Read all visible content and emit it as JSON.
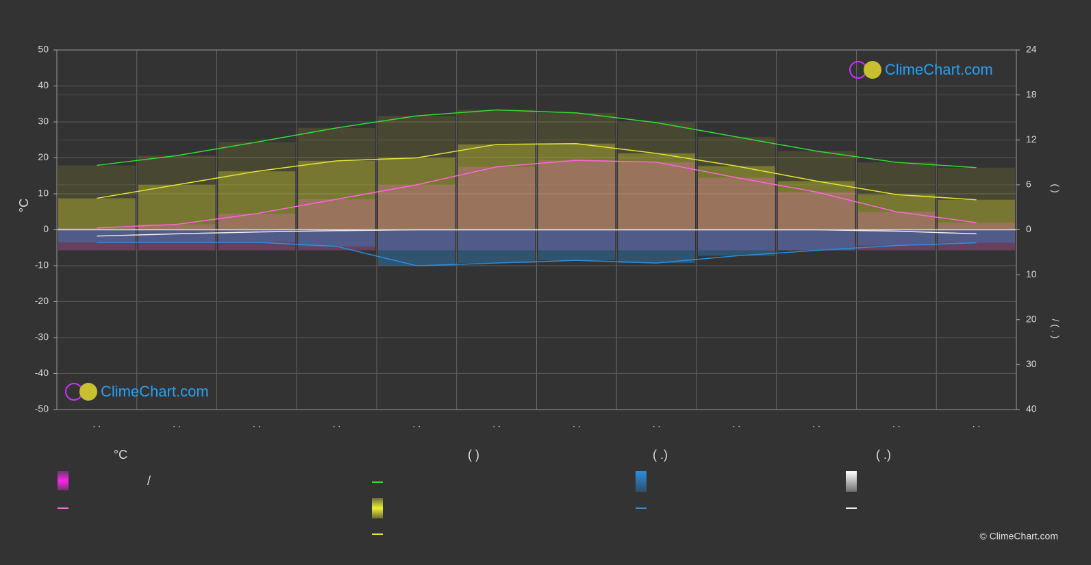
{
  "chart_data": {
    "type": "climate",
    "y_label": "°C",
    "right_label_top": "(   )",
    "right_label_bottom": "/  ( . )",
    "categories": [
      ". .",
      ". .",
      ". .",
      ". .",
      ". .",
      ". .",
      ". .",
      ". .",
      ". .",
      ". .",
      ". .",
      ". ."
    ],
    "ylim": [
      -50,
      50
    ],
    "yticks": [
      -50,
      -40,
      -30,
      -20,
      -10,
      0,
      10,
      20,
      30,
      40,
      50
    ],
    "sun_lim": [
      0,
      24
    ],
    "sun_ticks": [
      0,
      6,
      12,
      18,
      24
    ],
    "precip_lim": [
      0,
      40
    ],
    "precip_ticks": [
      10,
      20,
      30,
      40
    ],
    "grid": true,
    "temperature": {
      "color": "#ff66dd",
      "values": [
        0.5,
        1.5,
        4.5,
        8.5,
        12.5,
        17.5,
        19.3,
        18.8,
        14.5,
        10.5,
        5,
        2
      ]
    },
    "daylight": {
      "color": "#33dd33",
      "values": [
        8.6,
        9.9,
        11.7,
        13.6,
        15.2,
        16.0,
        15.6,
        14.3,
        12.4,
        10.5,
        9.0,
        8.3
      ]
    },
    "sunshine": {
      "color": "#e6e633",
      "values": [
        4.2,
        6.0,
        7.8,
        9.2,
        9.6,
        11.4,
        11.5,
        10.2,
        8.5,
        6.5,
        4.7,
        4.0
      ]
    },
    "precipitation": {
      "color": "#2a8fe0",
      "values": [
        2.8,
        2.8,
        2.8,
        3.7,
        8.0,
        7.4,
        6.8,
        7.4,
        5.8,
        4.6,
        3.5,
        2.9
      ]
    },
    "snow": {
      "color": "#eeeeee",
      "values": [
        1.4,
        0.9,
        0.5,
        0.2,
        0,
        0,
        0,
        0,
        0,
        0,
        0.3,
        0.9
      ]
    },
    "legend_headers": [
      "°C",
      "(          )",
      "(   .)",
      "(   .)"
    ],
    "legend_text": "/",
    "watermark": "ClimeChart.com",
    "copyright": "© ClimeChart.com"
  }
}
